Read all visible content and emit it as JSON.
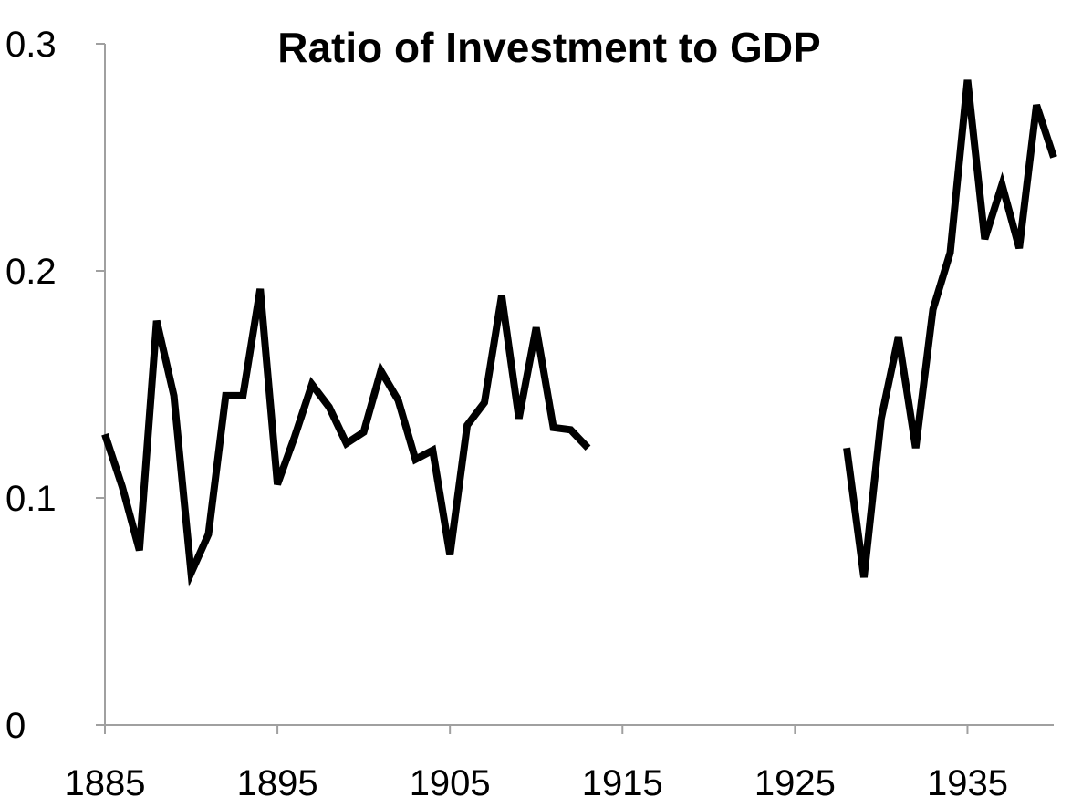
{
  "chart_data": {
    "type": "line",
    "title": "Ratio of Investment to GDP",
    "xlabel": "",
    "ylabel": "",
    "xlim": [
      1885,
      1940
    ],
    "ylim": [
      0,
      0.3
    ],
    "x_ticks": [
      1885,
      1895,
      1905,
      1915,
      1925,
      1935
    ],
    "x_tick_labels": [
      "1885",
      "1895",
      "1905",
      "1915",
      "1925",
      "1935"
    ],
    "y_ticks": [
      0,
      0.1,
      0.2,
      0.3
    ],
    "y_tick_labels": [
      "0",
      "0.1",
      "0.2",
      "0.3"
    ],
    "grid": false,
    "legend": "none",
    "line_color": "#000000",
    "series": [
      {
        "segments": [
          {
            "x": [
              1885,
              1886,
              1887,
              1888,
              1889,
              1890,
              1891,
              1892,
              1893,
              1894,
              1895,
              1896,
              1897,
              1898,
              1899,
              1900,
              1901,
              1902,
              1903,
              1904,
              1905,
              1906,
              1907,
              1908,
              1909,
              1910,
              1911,
              1912,
              1913
            ],
            "y": [
              0.128,
              0.105,
              0.077,
              0.178,
              0.145,
              0.067,
              0.084,
              0.145,
              0.145,
              0.192,
              0.106,
              0.127,
              0.15,
              0.14,
              0.124,
              0.129,
              0.156,
              0.143,
              0.117,
              0.121,
              0.075,
              0.132,
              0.142,
              0.189,
              0.135,
              0.175,
              0.131,
              0.13,
              0.122
            ]
          },
          {
            "x": [
              1928,
              1929,
              1930,
              1931,
              1932,
              1933,
              1934,
              1935,
              1936,
              1937,
              1938,
              1939,
              1940
            ],
            "y": [
              0.122,
              0.065,
              0.135,
              0.171,
              0.122,
              0.183,
              0.208,
              0.284,
              0.214,
              0.238,
              0.21,
              0.273,
              0.25
            ]
          }
        ]
      }
    ]
  }
}
